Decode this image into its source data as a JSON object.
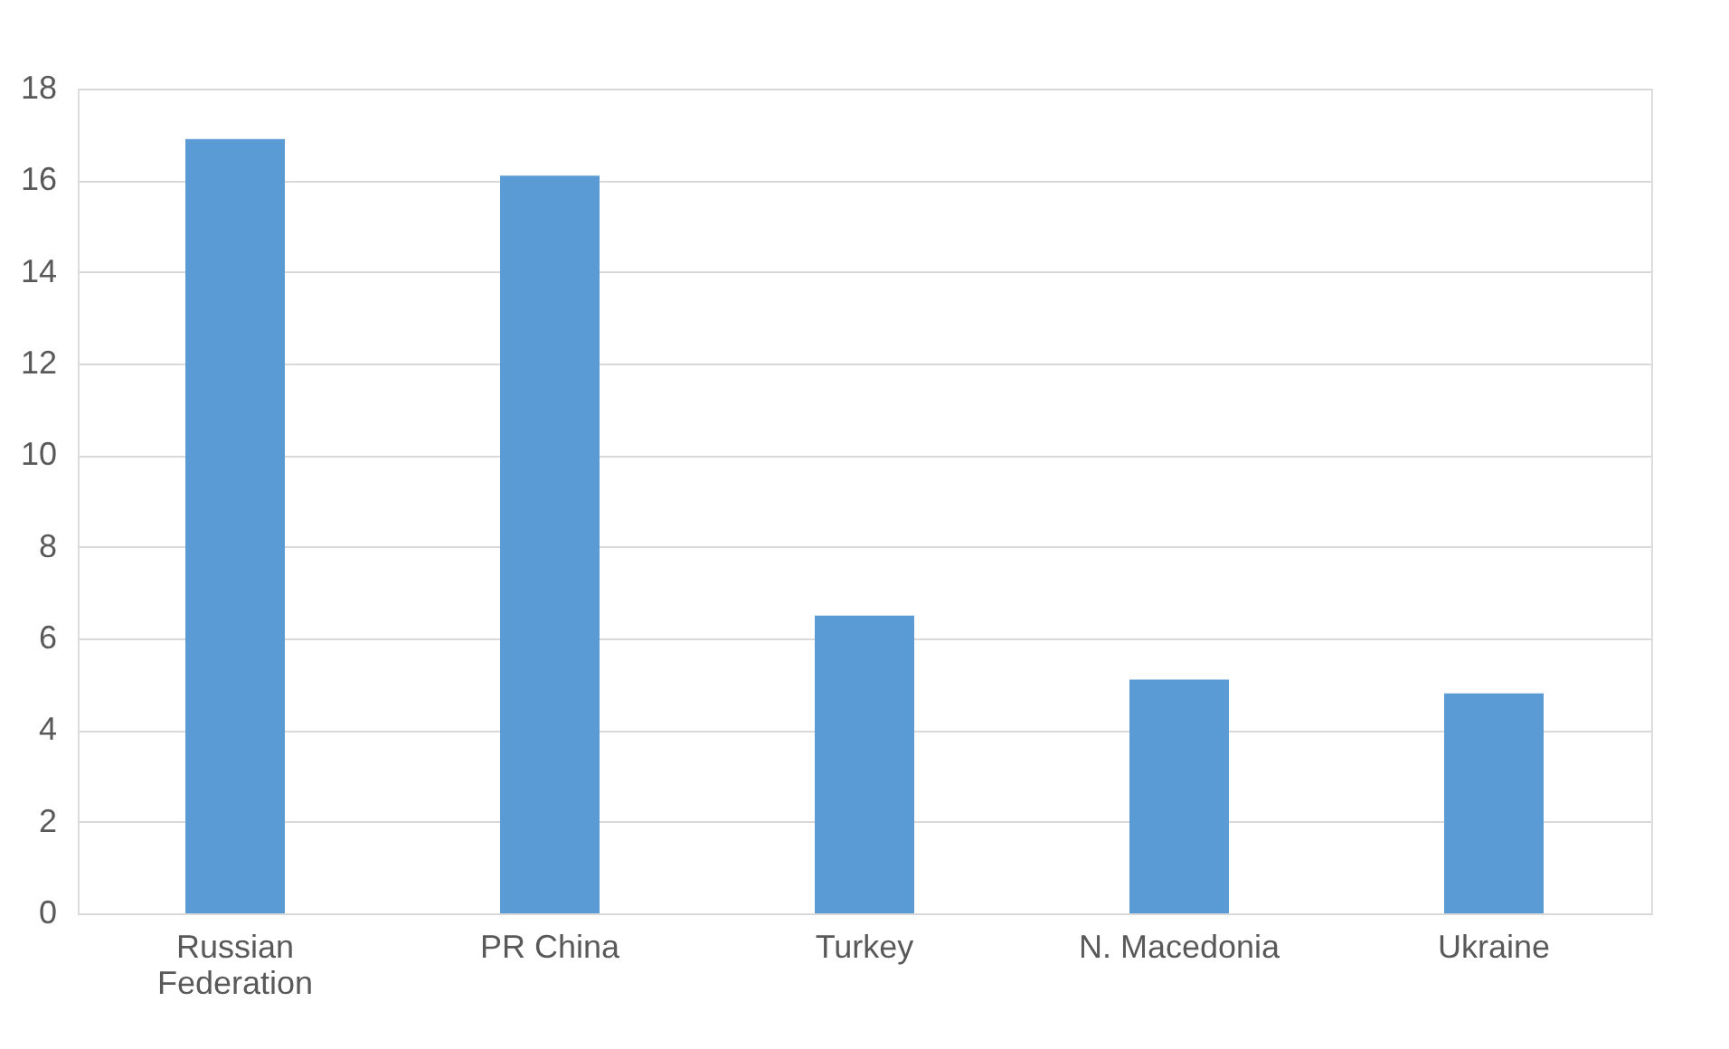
{
  "chart_data": {
    "type": "bar",
    "categories": [
      "Russian Federation",
      "PR China",
      "Turkey",
      "N. Macedonia",
      "Ukraine"
    ],
    "values": [
      16.9,
      16.1,
      6.5,
      5.1,
      4.8
    ],
    "color": "#5b9bd5",
    "ylim": [
      0,
      18
    ],
    "yticks": [
      0,
      2,
      4,
      6,
      8,
      10,
      12,
      14,
      16,
      18
    ],
    "grid": "y"
  }
}
